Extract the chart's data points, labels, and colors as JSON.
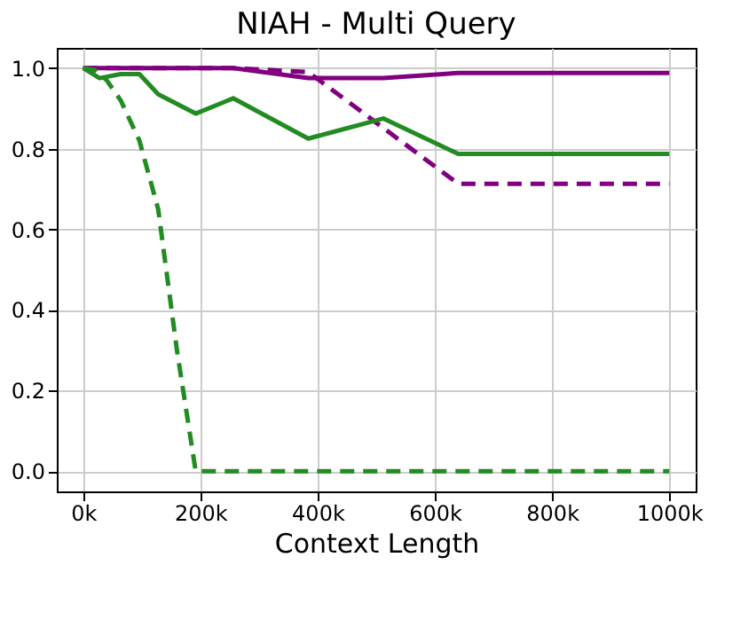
{
  "chart_data": {
    "type": "line",
    "title": "NIAH - Multi Query",
    "xlabel": "Context Length",
    "xlim": [
      -45000,
      1045000
    ],
    "ylim": [
      -0.05,
      1.05
    ],
    "xticks": [
      {
        "value": 0,
        "label": "0k"
      },
      {
        "value": 200000,
        "label": "200k"
      },
      {
        "value": 400000,
        "label": "400k"
      },
      {
        "value": 600000,
        "label": "600k"
      },
      {
        "value": 800000,
        "label": "800k"
      },
      {
        "value": 1000000,
        "label": "1000k"
      }
    ],
    "yticks": [
      {
        "value": 0,
        "label": "0.0"
      },
      {
        "value": 0.2,
        "label": "0.2"
      },
      {
        "value": 0.4,
        "label": "0.4"
      },
      {
        "value": 0.6,
        "label": "0.6"
      },
      {
        "value": 0.8,
        "label": "0.8"
      },
      {
        "value": 1,
        "label": "1.0"
      }
    ],
    "grid": true,
    "marker": "none",
    "series": [
      {
        "color": "#800080",
        "line_style": "solid",
        "x": [
          0,
          256000,
          384000,
          512000,
          640000,
          1000000
        ],
        "values": [
          1.0,
          1.0,
          0.975,
          0.975,
          0.988,
          0.988
        ]
      },
      {
        "color": "#800080",
        "line_style": "dashed",
        "x": [
          0,
          256000,
          384000,
          640000,
          1000000
        ],
        "values": [
          1.0,
          1.0,
          0.99,
          0.713,
          0.713
        ]
      },
      {
        "color": "#228b22",
        "line_style": "solid",
        "x": [
          0,
          28000,
          64000,
          96000,
          128000,
          192000,
          256000,
          384000,
          512000,
          640000,
          1000000
        ],
        "values": [
          1.0,
          0.975,
          0.985,
          0.985,
          0.935,
          0.887,
          0.925,
          0.825,
          0.875,
          0.787,
          0.787
        ]
      },
      {
        "color": "#228b22",
        "line_style": "dashed",
        "x": [
          0,
          20000,
          40000,
          64000,
          96000,
          128000,
          160000,
          192000,
          1000000
        ],
        "values": [
          1.0,
          0.995,
          0.97,
          0.92,
          0.82,
          0.65,
          0.3,
          0.0,
          0.0
        ]
      }
    ]
  }
}
